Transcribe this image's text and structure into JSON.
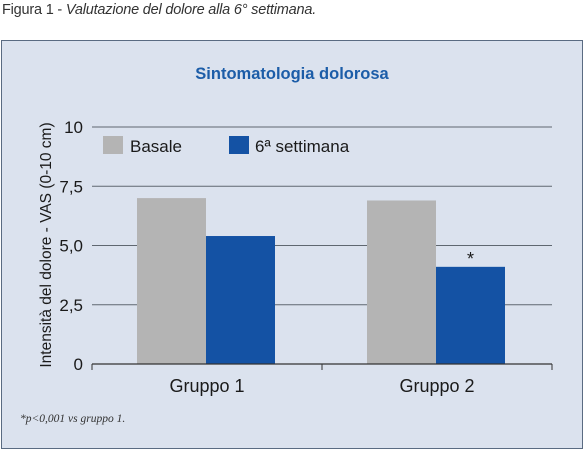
{
  "caption": {
    "prefix": "Figura 1 - ",
    "text": "Valutazione del dolore alla 6° settimana."
  },
  "colors": {
    "panel_background": "#dbe2ee",
    "title": "#1c5da8",
    "series_basale": "#b4b4b4",
    "series_6w": "#1452a4"
  },
  "chart_data": {
    "type": "bar",
    "title": "Sintomatologia dolorosa",
    "xlabel": "",
    "ylabel": "Intensità del dolore - VAS (0-10 cm)",
    "categories": [
      "Gruppo 1",
      "Gruppo 2"
    ],
    "series": [
      {
        "name": "Basale",
        "values": [
          7.0,
          6.9
        ]
      },
      {
        "name": "6ª settimana",
        "values": [
          5.4,
          4.1
        ]
      }
    ],
    "ylim": [
      0,
      10
    ],
    "yticks": [
      0,
      2.5,
      5,
      7.5,
      10
    ],
    "ytick_labels": [
      "0",
      "2,5",
      "5,0",
      "7,5",
      "10"
    ],
    "grid": true,
    "legend": "top-left",
    "annotations": [
      {
        "text": "*",
        "category": "Gruppo 2",
        "series": "6ª settimana"
      }
    ]
  },
  "footnote": "*p<0,001 vs gruppo 1."
}
